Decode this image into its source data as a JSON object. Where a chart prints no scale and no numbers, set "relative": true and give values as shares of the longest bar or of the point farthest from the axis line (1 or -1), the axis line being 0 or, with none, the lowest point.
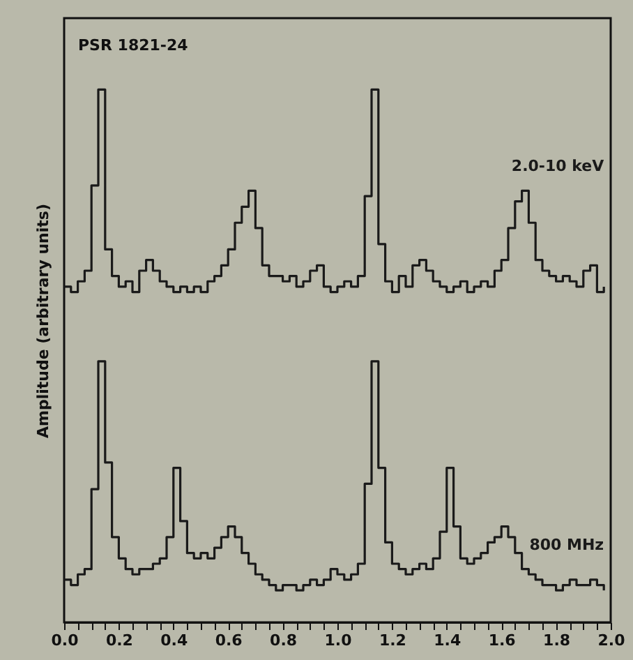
{
  "chart_data": {
    "type": "step",
    "relative": true,
    "ylabel": "Amplitude (arbitrary units)",
    "annotations": [
      "PSR 1821-24"
    ],
    "x": [
      0.0,
      0.025,
      0.05,
      0.075,
      0.1,
      0.125,
      0.15,
      0.175,
      0.2,
      0.225,
      0.25,
      0.275,
      0.3,
      0.325,
      0.35,
      0.375,
      0.4,
      0.425,
      0.45,
      0.475,
      0.5,
      0.525,
      0.55,
      0.575,
      0.6,
      0.625,
      0.65,
      0.675,
      0.7,
      0.725,
      0.75,
      0.775,
      0.8,
      0.825,
      0.85,
      0.875,
      0.9,
      0.925,
      0.95,
      0.975,
      1.0,
      1.025,
      1.05,
      1.075,
      1.1,
      1.125,
      1.15,
      1.175,
      1.2,
      1.225,
      1.25,
      1.275,
      1.3,
      1.325,
      1.35,
      1.375,
      1.4,
      1.425,
      1.45,
      1.475,
      1.5,
      1.525,
      1.55,
      1.575,
      1.6,
      1.625,
      1.65,
      1.675,
      1.7,
      1.725,
      1.75,
      1.775,
      1.8,
      1.825,
      1.85,
      1.875,
      1.9,
      1.925,
      1.95,
      1.975
    ],
    "xlim": [
      0,
      2.0
    ],
    "xticks": [
      {
        "value": 0,
        "label": "0.0"
      },
      {
        "value": 0.05,
        "label": null
      },
      {
        "value": 0.1,
        "label": null
      },
      {
        "value": 0.15,
        "label": null
      },
      {
        "value": 0.2,
        "label": "0.2"
      },
      {
        "value": 0.25,
        "label": null
      },
      {
        "value": 0.3,
        "label": null
      },
      {
        "value": 0.35,
        "label": null
      },
      {
        "value": 0.4,
        "label": "0.4"
      },
      {
        "value": 0.45,
        "label": null
      },
      {
        "value": 0.5,
        "label": null
      },
      {
        "value": 0.55,
        "label": null
      },
      {
        "value": 0.6,
        "label": "0.6"
      },
      {
        "value": 0.65,
        "label": null
      },
      {
        "value": 0.7,
        "label": null
      },
      {
        "value": 0.75,
        "label": null
      },
      {
        "value": 0.8,
        "label": "0.8"
      },
      {
        "value": 0.85,
        "label": null
      },
      {
        "value": 0.9,
        "label": null
      },
      {
        "value": 0.95,
        "label": null
      },
      {
        "value": 1.0,
        "label": "1.0"
      },
      {
        "value": 1.05,
        "label": null
      },
      {
        "value": 1.1,
        "label": null
      },
      {
        "value": 1.15,
        "label": null
      },
      {
        "value": 1.2,
        "label": "1.2"
      },
      {
        "value": 1.25,
        "label": null
      },
      {
        "value": 1.3,
        "label": null
      },
      {
        "value": 1.35,
        "label": null
      },
      {
        "value": 1.4,
        "label": "1.4"
      },
      {
        "value": 1.45,
        "label": null
      },
      {
        "value": 1.5,
        "label": null
      },
      {
        "value": 1.55,
        "label": null
      },
      {
        "value": 1.6,
        "label": "1.6"
      },
      {
        "value": 1.65,
        "label": null
      },
      {
        "value": 1.7,
        "label": null
      },
      {
        "value": 1.75,
        "label": null
      },
      {
        "value": 1.8,
        "label": "1.8"
      },
      {
        "value": 1.85,
        "label": null
      },
      {
        "value": 1.9,
        "label": null
      },
      {
        "value": 1.95,
        "label": null
      },
      {
        "value": 2.0,
        "label": "2.0"
      }
    ],
    "series": [
      {
        "name": "2.0-10 keV",
        "color": "#1a1a1a",
        "values": [
          0.63,
          0.62,
          0.64,
          0.66,
          0.82,
          1.0,
          0.7,
          0.65,
          0.63,
          0.64,
          0.62,
          0.66,
          0.68,
          0.66,
          0.64,
          0.63,
          0.62,
          0.63,
          0.62,
          0.63,
          0.62,
          0.64,
          0.65,
          0.67,
          0.7,
          0.75,
          0.78,
          0.81,
          0.74,
          0.67,
          0.65,
          0.65,
          0.64,
          0.65,
          0.63,
          0.64,
          0.66,
          0.67,
          0.63,
          0.62,
          0.63,
          0.64,
          0.63,
          0.65,
          0.8,
          1.0,
          0.71,
          0.64,
          0.62,
          0.65,
          0.63,
          0.67,
          0.68,
          0.66,
          0.64,
          0.63,
          0.62,
          0.63,
          0.64,
          0.62,
          0.63,
          0.64,
          0.63,
          0.66,
          0.68,
          0.74,
          0.79,
          0.81,
          0.75,
          0.68,
          0.66,
          0.65,
          0.64,
          0.65,
          0.64,
          0.63,
          0.66,
          0.67,
          0.62,
          0.63
        ]
      },
      {
        "name": "800 MHz",
        "color": "#1a1a1a",
        "values": [
          0.08,
          0.07,
          0.09,
          0.1,
          0.25,
          0.49,
          0.3,
          0.16,
          0.12,
          0.1,
          0.09,
          0.1,
          0.1,
          0.11,
          0.12,
          0.16,
          0.29,
          0.19,
          0.13,
          0.12,
          0.13,
          0.12,
          0.14,
          0.16,
          0.18,
          0.16,
          0.13,
          0.11,
          0.09,
          0.08,
          0.07,
          0.06,
          0.07,
          0.07,
          0.06,
          0.07,
          0.08,
          0.07,
          0.08,
          0.1,
          0.09,
          0.08,
          0.09,
          0.11,
          0.26,
          0.49,
          0.29,
          0.15,
          0.11,
          0.1,
          0.09,
          0.1,
          0.11,
          0.1,
          0.12,
          0.17,
          0.29,
          0.18,
          0.12,
          0.11,
          0.12,
          0.13,
          0.15,
          0.16,
          0.18,
          0.16,
          0.13,
          0.1,
          0.09,
          0.08,
          0.07,
          0.07,
          0.06,
          0.07,
          0.08,
          0.07,
          0.07,
          0.08,
          0.07,
          0.06
        ]
      }
    ]
  }
}
